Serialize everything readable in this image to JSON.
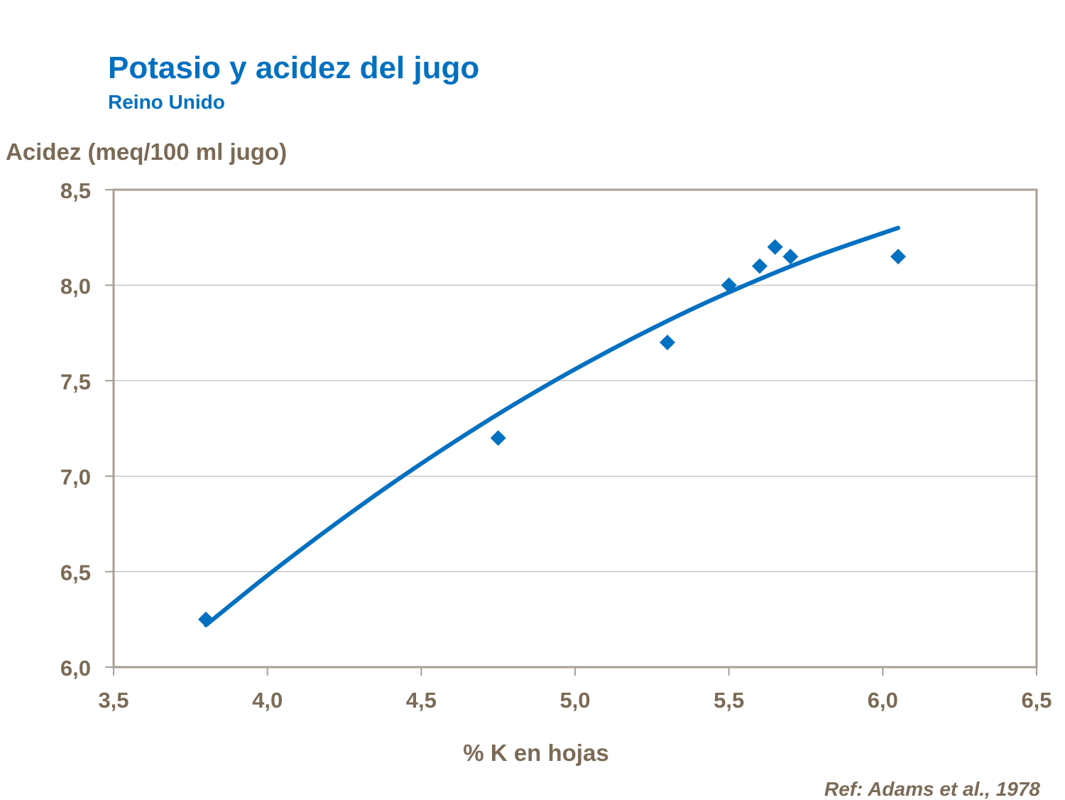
{
  "chart_data": {
    "type": "scatter",
    "title": "Potasio y acidez del jugo",
    "subtitle": "Reino Unido",
    "xlabel": "% K en hojas",
    "ylabel": "Acidez (meq/100 ml jugo)",
    "source": "Ref: Adams et al., 1978",
    "xlim": [
      3.5,
      6.5
    ],
    "ylim": [
      6.0,
      8.5
    ],
    "xticks": [
      3.5,
      4.0,
      4.5,
      5.0,
      5.5,
      6.0,
      6.5
    ],
    "xtick_labels": [
      "3,5",
      "4,0",
      "4,5",
      "5,0",
      "5,5",
      "6,0",
      "6,5"
    ],
    "yticks": [
      6.0,
      6.5,
      7.0,
      7.5,
      8.0,
      8.5
    ],
    "ytick_labels": [
      "6,0",
      "6,5",
      "7,0",
      "7,5",
      "8,0",
      "8,5"
    ],
    "grid": "horizontal",
    "marker": "diamond",
    "points": [
      {
        "x": 3.8,
        "y": 6.25
      },
      {
        "x": 4.75,
        "y": 7.2
      },
      {
        "x": 5.3,
        "y": 7.7
      },
      {
        "x": 5.5,
        "y": 8.0
      },
      {
        "x": 5.6,
        "y": 8.1
      },
      {
        "x": 5.65,
        "y": 8.2
      },
      {
        "x": 5.7,
        "y": 8.15
      },
      {
        "x": 6.05,
        "y": 8.15
      }
    ],
    "trendline": {
      "type": "polynomial",
      "points": [
        [
          3.8,
          6.22
        ],
        [
          4.0,
          6.48
        ],
        [
          4.2,
          6.725
        ],
        [
          4.4,
          6.956
        ],
        [
          4.6,
          7.172
        ],
        [
          4.8,
          7.374
        ],
        [
          5.0,
          7.56
        ],
        [
          5.2,
          7.732
        ],
        [
          5.4,
          7.89
        ],
        [
          5.6,
          8.032
        ],
        [
          5.8,
          8.161
        ],
        [
          6.05,
          8.3
        ]
      ]
    },
    "colors": {
      "series": "#0070C0",
      "text": "#7B6A56",
      "title": "#0070C0",
      "grid": "#B9AFA3",
      "frame": "#A89F94"
    }
  }
}
